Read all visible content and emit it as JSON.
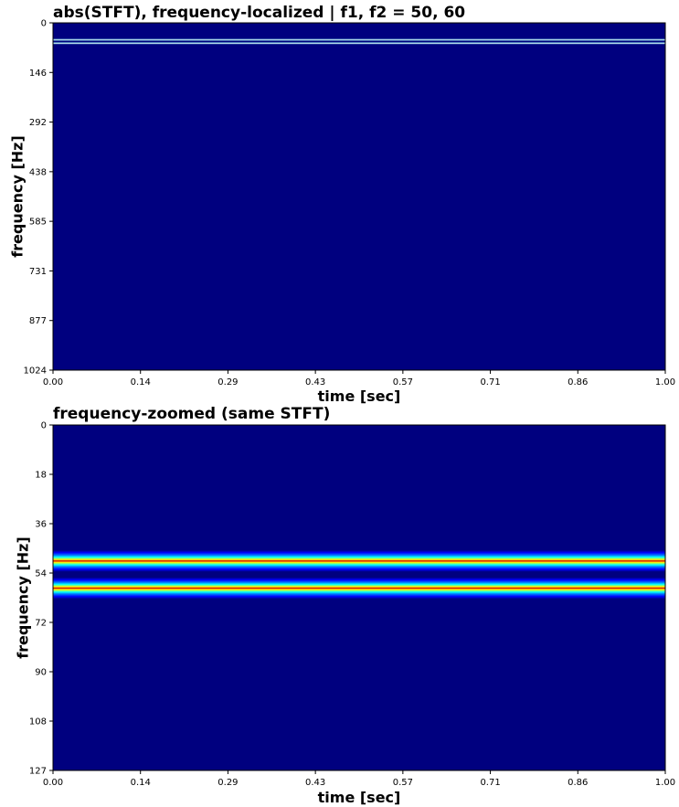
{
  "chart_data": [
    {
      "type": "heatmap",
      "title": "abs(STFT), frequency-localized | f1, f2 = 50, 60",
      "xlabel": "time [sec]",
      "ylabel": "frequency [Hz]",
      "xlim": [
        0.0,
        1.0
      ],
      "ylim": [
        0,
        1024
      ],
      "y_inverted": true,
      "xticks": [
        "0.00",
        "0.14",
        "0.29",
        "0.43",
        "0.57",
        "0.71",
        "0.86",
        "1.00"
      ],
      "yticks": [
        "0",
        "146",
        "292",
        "438",
        "585",
        "731",
        "877",
        "1024"
      ],
      "colormap": "jet",
      "bands": [
        {
          "center_hz": 50,
          "half_width_hz": 4
        },
        {
          "center_hz": 60,
          "half_width_hz": 4
        }
      ]
    },
    {
      "type": "heatmap",
      "title": "frequency-zoomed (same STFT)",
      "xlabel": "time [sec]",
      "ylabel": "frequency [Hz]",
      "xlim": [
        0.0,
        1.0
      ],
      "ylim": [
        0,
        127
      ],
      "y_inverted": true,
      "xticks": [
        "0.00",
        "0.14",
        "0.29",
        "0.43",
        "0.57",
        "0.71",
        "0.86",
        "1.00"
      ],
      "yticks": [
        "0",
        "18",
        "36",
        "54",
        "72",
        "90",
        "108",
        "127"
      ],
      "colormap": "jet",
      "bands": [
        {
          "center_hz": 50,
          "half_width_hz": 4
        },
        {
          "center_hz": 60,
          "half_width_hz": 4
        }
      ]
    }
  ]
}
